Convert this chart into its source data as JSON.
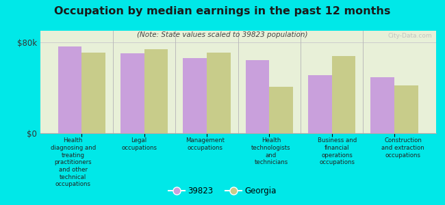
{
  "title": "Occupation by median earnings in the past 12 months",
  "subtitle": "(Note: State values scaled to 39823 population)",
  "categories": [
    "Health\ndiagnosing and\ntreating\npractitioners\nand other\ntechnical\noccupations",
    "Legal\noccupations",
    "Management\noccupations",
    "Health\ntechnologists\nand\ntechnicians",
    "Business and\nfinancial\noperations\noccupations",
    "Construction\nand extraction\noccupations"
  ],
  "values_39823": [
    76000,
    70000,
    66000,
    64000,
    51000,
    49000
  ],
  "values_georgia": [
    71000,
    74000,
    71000,
    41000,
    68000,
    42000
  ],
  "color_39823": "#c9a0dc",
  "color_georgia": "#c8cc8a",
  "background_outer": "#00e8e8",
  "background_inner": "#e8f0d8",
  "ylim": [
    0,
    90000
  ],
  "yticks": [
    0,
    80000
  ],
  "ytick_labels": [
    "$0",
    "$80k"
  ],
  "legend_39823": "39823",
  "legend_georgia": "Georgia",
  "watermark": "City-Data.com"
}
